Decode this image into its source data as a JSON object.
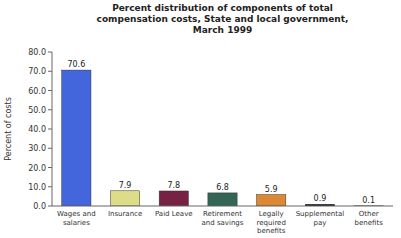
{
  "chart_data": {
    "type": "bar",
    "title": "Percent distribution of components of total\ncompensation costs, State and local government,\nMarch 1999",
    "categories": [
      "Wages and\nsalaries",
      "Insurance",
      "Paid Leave",
      "Retirement\nand savings",
      "Legally\nrequired\nbenefits",
      "Supplemental\npay",
      "Other\nbenefits"
    ],
    "values": [
      70.6,
      7.9,
      7.8,
      6.8,
      5.9,
      0.9,
      0.1
    ],
    "colors": [
      "#4466dd",
      "#dddd88",
      "#772244",
      "#336655",
      "#dd8833",
      "#111111",
      "#999999"
    ],
    "ylabel": "Percent of costs",
    "ylim": [
      0,
      80
    ],
    "yticks": [
      {
        "value": 0,
        "label": "0.0"
      },
      {
        "value": 10,
        "label": "10.0"
      },
      {
        "value": 20,
        "label": "20.0"
      },
      {
        "value": 30,
        "label": "30.0"
      },
      {
        "value": 40,
        "label": "40.0"
      },
      {
        "value": 50,
        "label": "50.0"
      },
      {
        "value": 60,
        "label": "60.0"
      },
      {
        "value": 70,
        "label": "70.0"
      },
      {
        "value": 80,
        "label": "80.0"
      }
    ],
    "grid": false,
    "data_labels": true
  }
}
